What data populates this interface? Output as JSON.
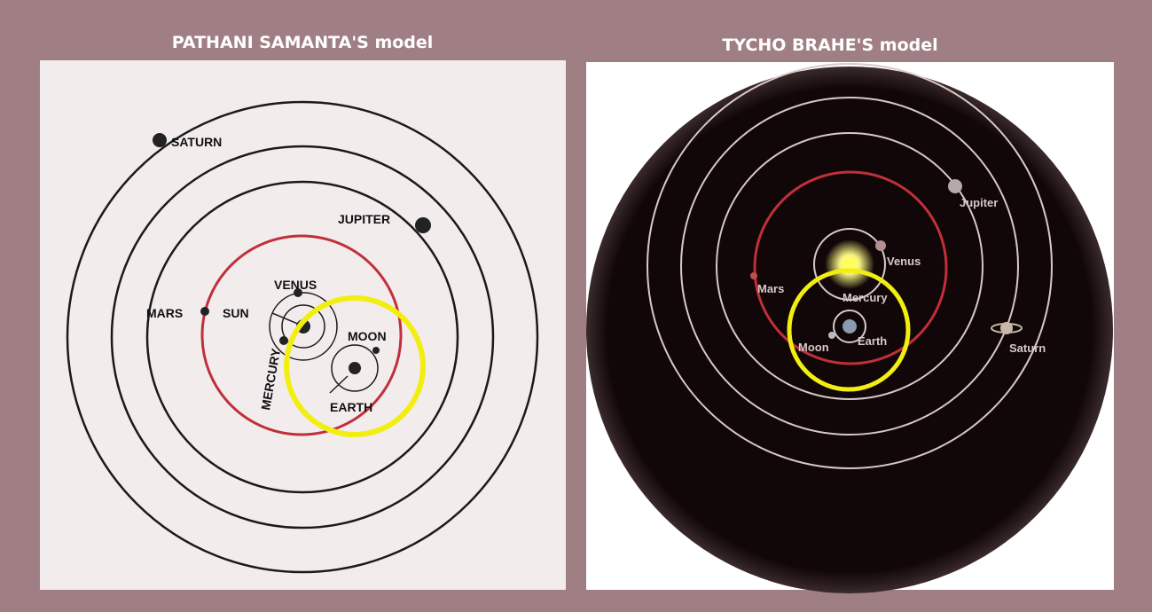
{
  "left": {
    "title": "PATHANI SAMANTA'S model",
    "labels": {
      "saturn": "SATURN",
      "jupiter": "JUPITER",
      "venus": "VENUS",
      "mars": "MARS",
      "sun": "SUN",
      "moon": "MOON",
      "mercury": "MERCURY",
      "earth": "EARTH"
    }
  },
  "right": {
    "title": "TYCHO BRAHE'S model",
    "labels": {
      "jupiter": "Jupiter",
      "venus": "Venus",
      "mars": "Mars",
      "mercury": "Mercury",
      "moon": "Moon",
      "earth": "Earth",
      "saturn": "Saturn"
    }
  }
}
